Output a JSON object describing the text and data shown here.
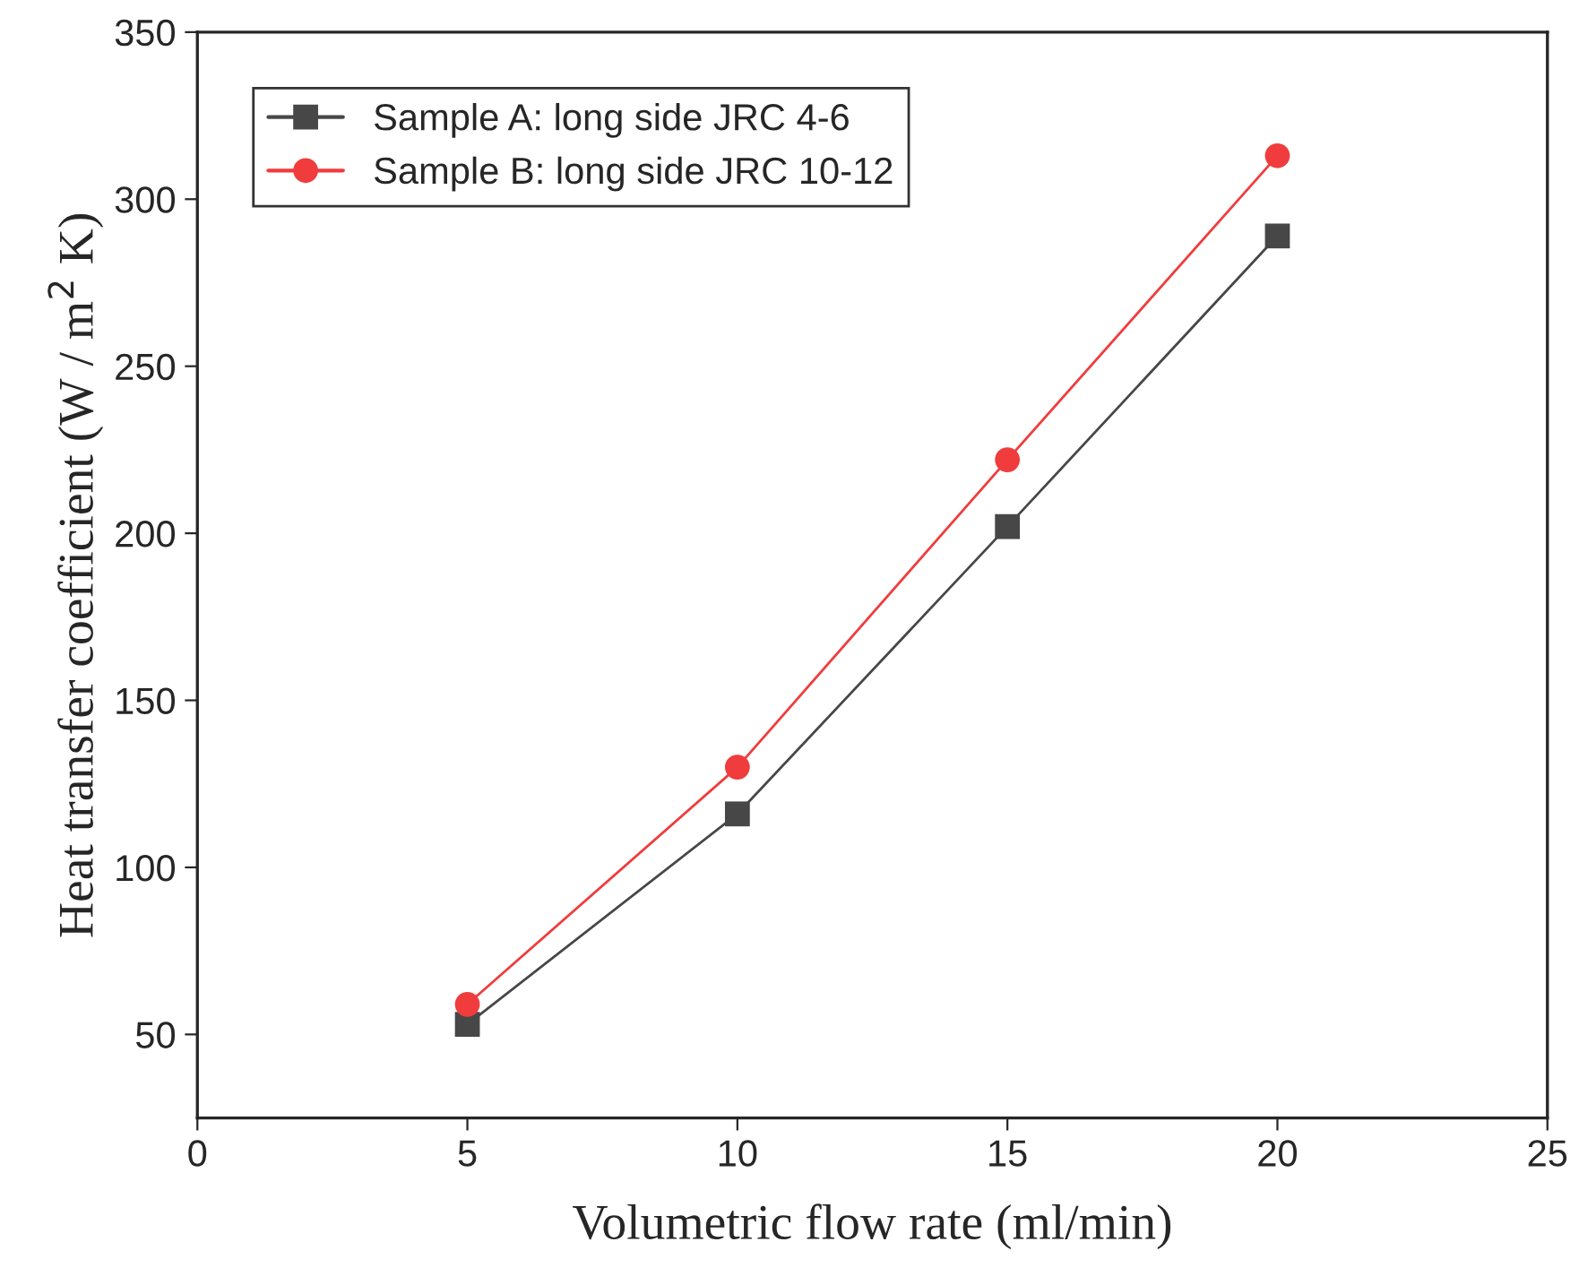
{
  "chart_data": {
    "type": "line",
    "xlabel": "Volumetric flow rate (ml/min)",
    "ylabel": "Heat transfer coefficient (W / m$^{2}$ K)",
    "x": [
      5,
      10,
      15,
      20
    ],
    "series": [
      {
        "name": "Sample A: long side JRC 4-6",
        "color": "#474747",
        "values": [
          53,
          116,
          202,
          289
        ],
        "marker": "square"
      },
      {
        "name": "Sample B: long side JRC 10-12",
        "color": "#f03c3c",
        "values": [
          59,
          130,
          222,
          313
        ],
        "marker": "circle"
      }
    ],
    "xlim": [
      0,
      25
    ],
    "xticks": [
      0,
      5,
      10,
      15,
      20,
      25
    ],
    "ylim": [
      25,
      350
    ],
    "yticks": [
      50,
      100,
      150,
      200,
      250,
      300,
      350
    ],
    "legend": "top left",
    "grid": false,
    "line_style": "solid"
  }
}
